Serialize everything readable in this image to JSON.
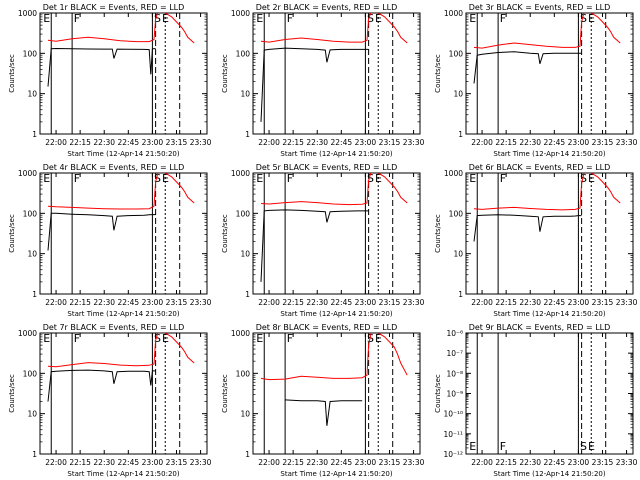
{
  "chart_data": [
    {
      "type": "line",
      "title": "Det 1r BLACK = Events, RED = LLD",
      "xlabel": "Start Time (12-Apr-14 21:50:20)",
      "ylabel": "Counts/sec",
      "x_ticks": [
        "22:00",
        "22:15",
        "22:30",
        "22:45",
        "23:00",
        "23:15",
        "23:30"
      ],
      "y_ticks": [
        "1",
        "10",
        "100",
        "1000"
      ],
      "ylim": [
        1,
        1000
      ],
      "y_scale": "log",
      "markers": [
        "E",
        "F",
        "S",
        "E"
      ],
      "series": [
        {
          "color": "#000000",
          "x": [
            "21:55",
            "21:57",
            "22:00",
            "22:10",
            "22:20",
            "22:30",
            "22:35",
            "22:36",
            "22:38",
            "22:45",
            "22:55",
            "22:58",
            "22:59",
            "23:00",
            "23:02"
          ],
          "y": [
            15,
            130,
            132,
            130,
            128,
            127,
            127,
            75,
            127,
            126,
            125,
            124,
            30,
            130,
            131
          ]
        },
        {
          "color": "#ff0000",
          "x": [
            "21:55",
            "22:00",
            "22:10",
            "22:20",
            "22:30",
            "22:40",
            "22:50",
            "22:58",
            "23:01",
            "23:02",
            "23:04",
            "23:08",
            "23:12",
            "23:15",
            "23:18",
            "23:20",
            "23:22",
            "23:26"
          ],
          "y": [
            210,
            200,
            230,
            250,
            230,
            205,
            195,
            195,
            220,
            700,
            1200,
            1000,
            800,
            600,
            450,
            350,
            250,
            180
          ]
        }
      ]
    },
    {
      "type": "line",
      "title": "Det 2r BLACK = Events, RED = LLD",
      "xlabel": "Start Time (12-Apr-14 21:50:20)",
      "ylabel": "Counts/sec",
      "x_ticks": [
        "22:00",
        "22:15",
        "22:30",
        "22:45",
        "23:00",
        "23:15",
        "23:30"
      ],
      "y_ticks": [
        "1",
        "10",
        "100",
        "1000"
      ],
      "ylim": [
        1,
        1000
      ],
      "y_scale": "log",
      "markers": [
        "E",
        "F",
        "S",
        "E"
      ],
      "series": [
        {
          "color": "#000000",
          "x": [
            "21:55",
            "21:57",
            "22:00",
            "22:10",
            "22:20",
            "22:30",
            "22:35",
            "22:36",
            "22:38",
            "22:45",
            "22:55",
            "22:58",
            "23:00",
            "23:02"
          ],
          "y": [
            2,
            120,
            125,
            135,
            130,
            125,
            120,
            60,
            122,
            125,
            125,
            125,
            125,
            125
          ]
        },
        {
          "color": "#ff0000",
          "x": [
            "21:55",
            "22:00",
            "22:10",
            "22:20",
            "22:30",
            "22:40",
            "22:50",
            "22:58",
            "23:01",
            "23:02",
            "23:04",
            "23:08",
            "23:12",
            "23:15",
            "23:18",
            "23:20",
            "23:22",
            "23:26"
          ],
          "y": [
            200,
            190,
            220,
            240,
            220,
            200,
            190,
            190,
            210,
            700,
            1200,
            1000,
            800,
            600,
            450,
            350,
            250,
            180
          ]
        }
      ]
    },
    {
      "type": "line",
      "title": "Det 3r BLACK = Events, RED = LLD",
      "xlabel": "Start Time (12-Apr-14 21:50:20)",
      "ylabel": "Counts/sec",
      "x_ticks": [
        "22:00",
        "22:15",
        "22:30",
        "22:45",
        "23:00",
        "23:15",
        "23:30"
      ],
      "y_ticks": [
        "1",
        "10",
        "100",
        "1000"
      ],
      "ylim": [
        1,
        1000
      ],
      "y_scale": "log",
      "markers": [
        "E",
        "F",
        "S",
        "E"
      ],
      "series": [
        {
          "color": "#000000",
          "x": [
            "21:55",
            "21:57",
            "22:00",
            "22:10",
            "22:20",
            "22:30",
            "22:35",
            "22:36",
            "22:38",
            "22:45",
            "22:55",
            "22:58",
            "23:00",
            "23:02"
          ],
          "y": [
            18,
            90,
            95,
            105,
            110,
            100,
            98,
            55,
            98,
            100,
            100,
            100,
            100,
            100
          ]
        },
        {
          "color": "#ff0000",
          "x": [
            "21:55",
            "22:00",
            "22:10",
            "22:20",
            "22:30",
            "22:40",
            "22:50",
            "22:58",
            "23:01",
            "23:02",
            "23:04",
            "23:08",
            "23:12",
            "23:15",
            "23:18",
            "23:20",
            "23:22",
            "23:26"
          ],
          "y": [
            140,
            135,
            160,
            180,
            165,
            150,
            140,
            140,
            150,
            600,
            1200,
            1000,
            800,
            600,
            450,
            350,
            250,
            180
          ]
        }
      ]
    },
    {
      "type": "line",
      "title": "Det 4r BLACK = Events, RED = LLD",
      "xlabel": "Start Time (12-Apr-14 21:50:20)",
      "ylabel": "Counts/sec",
      "x_ticks": [
        "22:00",
        "22:15",
        "22:30",
        "22:45",
        "23:00",
        "23:15",
        "23:30"
      ],
      "y_ticks": [
        "1",
        "10",
        "100",
        "1000"
      ],
      "ylim": [
        1,
        1000
      ],
      "y_scale": "log",
      "markers": [
        "E",
        "F",
        "S",
        "E"
      ],
      "series": [
        {
          "color": "#000000",
          "x": [
            "21:55",
            "21:57",
            "22:00",
            "22:10",
            "22:20",
            "22:30",
            "22:35",
            "22:36",
            "22:38",
            "22:45",
            "22:55",
            "22:58",
            "23:00",
            "23:02"
          ],
          "y": [
            12,
            100,
            100,
            95,
            92,
            88,
            85,
            38,
            85,
            88,
            90,
            92,
            93,
            93
          ]
        },
        {
          "color": "#ff0000",
          "x": [
            "21:55",
            "22:00",
            "22:10",
            "22:20",
            "22:30",
            "22:40",
            "22:50",
            "22:58",
            "23:01",
            "23:02",
            "23:04",
            "23:08",
            "23:12",
            "23:15",
            "23:18",
            "23:20",
            "23:22",
            "23:26"
          ],
          "y": [
            150,
            145,
            140,
            135,
            130,
            128,
            128,
            130,
            150,
            600,
            1200,
            1000,
            800,
            600,
            450,
            350,
            250,
            180
          ]
        }
      ]
    },
    {
      "type": "line",
      "title": "Det 5r BLACK = Events, RED = LLD",
      "xlabel": "Start Time (12-Apr-14 21:50:20)",
      "ylabel": "Counts/sec",
      "x_ticks": [
        "22:00",
        "22:15",
        "22:30",
        "22:45",
        "23:00",
        "23:15",
        "23:30"
      ],
      "y_ticks": [
        "1",
        "10",
        "100",
        "1000"
      ],
      "ylim": [
        1,
        1000
      ],
      "y_scale": "log",
      "markers": [
        "E",
        "F",
        "S",
        "E"
      ],
      "series": [
        {
          "color": "#000000",
          "x": [
            "21:55",
            "21:57",
            "22:00",
            "22:10",
            "22:20",
            "22:30",
            "22:35",
            "22:36",
            "22:38",
            "22:45",
            "22:55",
            "22:58",
            "23:00",
            "23:02"
          ],
          "y": [
            2,
            115,
            118,
            122,
            118,
            112,
            110,
            60,
            110,
            112,
            115,
            115,
            115,
            115
          ]
        },
        {
          "color": "#ff0000",
          "x": [
            "21:55",
            "22:00",
            "22:10",
            "22:20",
            "22:30",
            "22:40",
            "22:50",
            "22:58",
            "23:01",
            "23:02",
            "23:04",
            "23:08",
            "23:12",
            "23:15",
            "23:18",
            "23:20",
            "23:22",
            "23:26"
          ],
          "y": [
            175,
            170,
            185,
            195,
            185,
            170,
            165,
            168,
            180,
            650,
            1200,
            1000,
            800,
            600,
            450,
            350,
            250,
            180
          ]
        }
      ]
    },
    {
      "type": "line",
      "title": "Det 6r BLACK = Events, RED = LLD",
      "xlabel": "Start Time (12-Apr-14 21:50:20)",
      "ylabel": "Counts/sec",
      "x_ticks": [
        "22:00",
        "22:15",
        "22:30",
        "22:45",
        "23:00",
        "23:15",
        "23:30"
      ],
      "y_ticks": [
        "1",
        "10",
        "100",
        "1000"
      ],
      "ylim": [
        1,
        1000
      ],
      "y_scale": "log",
      "markers": [
        "E",
        "F",
        "S",
        "E"
      ],
      "series": [
        {
          "color": "#000000",
          "x": [
            "21:55",
            "21:57",
            "22:00",
            "22:10",
            "22:20",
            "22:30",
            "22:35",
            "22:36",
            "22:38",
            "22:45",
            "22:55",
            "22:58",
            "23:00",
            "23:02"
          ],
          "y": [
            20,
            88,
            90,
            92,
            90,
            85,
            82,
            35,
            82,
            85,
            85,
            86,
            88,
            88
          ]
        },
        {
          "color": "#ff0000",
          "x": [
            "21:55",
            "22:00",
            "22:10",
            "22:20",
            "22:30",
            "22:40",
            "22:50",
            "22:58",
            "23:01",
            "23:02",
            "23:04",
            "23:08",
            "23:12",
            "23:15",
            "23:18",
            "23:20",
            "23:22",
            "23:26"
          ],
          "y": [
            130,
            125,
            135,
            140,
            132,
            125,
            122,
            125,
            135,
            550,
            1200,
            1000,
            800,
            600,
            450,
            350,
            250,
            180
          ]
        }
      ]
    },
    {
      "type": "line",
      "title": "Det 7r BLACK = Events, RED = LLD",
      "xlabel": "Start Time (12-Apr-14 21:50:20)",
      "ylabel": "Counts/sec",
      "x_ticks": [
        "22:00",
        "22:15",
        "22:30",
        "22:45",
        "23:00",
        "23:15",
        "23:30"
      ],
      "y_ticks": [
        "1",
        "10",
        "100",
        "1000"
      ],
      "ylim": [
        1,
        1000
      ],
      "y_scale": "log",
      "markers": [
        "E",
        "F",
        "S",
        "E"
      ],
      "series": [
        {
          "color": "#000000",
          "x": [
            "21:55",
            "21:57",
            "22:00",
            "22:10",
            "22:20",
            "22:30",
            "22:35",
            "22:36",
            "22:38",
            "22:45",
            "22:55",
            "22:58",
            "22:59",
            "23:00",
            "23:02"
          ],
          "y": [
            20,
            110,
            112,
            118,
            120,
            115,
            110,
            55,
            110,
            112,
            112,
            110,
            50,
            115,
            115
          ]
        },
        {
          "color": "#ff0000",
          "x": [
            "21:55",
            "22:00",
            "22:10",
            "22:20",
            "22:30",
            "22:40",
            "22:50",
            "22:58",
            "23:01",
            "23:02",
            "23:04",
            "23:08",
            "23:12",
            "23:15",
            "23:18",
            "23:20",
            "23:22",
            "23:26"
          ],
          "y": [
            150,
            145,
            165,
            185,
            175,
            160,
            155,
            158,
            170,
            650,
            1200,
            1000,
            800,
            600,
            450,
            350,
            250,
            180
          ]
        }
      ]
    },
    {
      "type": "line",
      "title": "Det 8r BLACK = Events, RED = LLD",
      "xlabel": "Start Time (12-Apr-14 21:50:20)",
      "ylabel": "Counts/sec",
      "x_ticks": [
        "22:00",
        "22:15",
        "22:30",
        "22:45",
        "23:00",
        "23:15",
        "23:30"
      ],
      "y_ticks": [
        "1",
        "10",
        "100",
        "1000"
      ],
      "ylim": [
        1,
        1000
      ],
      "y_scale": "log",
      "markers": [
        "E",
        "F",
        "S",
        "E"
      ],
      "series": [
        {
          "color": "#000000",
          "x": [
            "22:10",
            "22:20",
            "22:30",
            "22:35",
            "22:36",
            "22:38",
            "22:45",
            "22:55",
            "22:58"
          ],
          "y": [
            22,
            21,
            21,
            20,
            5,
            20,
            21,
            21,
            21
          ]
        },
        {
          "color": "#ff0000",
          "x": [
            "21:55",
            "22:00",
            "22:10",
            "22:20",
            "22:30",
            "22:40",
            "22:50",
            "22:58",
            "23:01",
            "23:02",
            "23:04",
            "23:08",
            "23:12",
            "23:15",
            "23:18",
            "23:20",
            "23:22",
            "23:26"
          ],
          "y": [
            75,
            70,
            72,
            85,
            80,
            75,
            75,
            78,
            90,
            500,
            1200,
            1000,
            800,
            600,
            450,
            300,
            180,
            90
          ]
        }
      ]
    },
    {
      "type": "line",
      "title": "Det 9r BLACK = Events, RED = LLD",
      "xlabel": "Start Time (12-Apr-14 21:50:20)",
      "ylabel": "Counts/sec",
      "x_ticks": [
        "22:00",
        "22:15",
        "22:30",
        "22:45",
        "23:00",
        "23:15",
        "23:30"
      ],
      "y_ticks": [
        "10⁻¹²",
        "10⁻¹¹",
        "10⁻¹⁰",
        "10⁻⁹",
        "10⁻⁸",
        "10⁻⁷",
        "10⁻⁶"
      ],
      "y_scale": "log",
      "markers": [
        "E",
        "F",
        "S",
        "E"
      ],
      "series": []
    }
  ]
}
